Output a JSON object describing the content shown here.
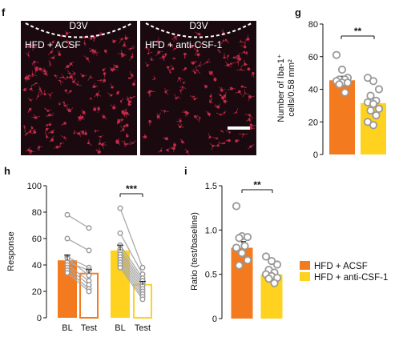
{
  "colors": {
    "acsf": "#f47a20",
    "anti_csf1": "#ffd21f",
    "dot_fill": "#ffffff",
    "dot_stroke": "#999999",
    "line_gray": "#aaaaaa",
    "axis": "#111111",
    "micro_bg": "#1a0a0f",
    "micro_cell": "#c42a4a"
  },
  "panel_f": {
    "letter": "f",
    "images": [
      {
        "label": "HFD + ACSF",
        "region": "D3V"
      },
      {
        "label": "HFD + anti-CSF-1",
        "region": "D3V"
      }
    ]
  },
  "chart_data": [
    {
      "panel": "g",
      "type": "bar",
      "categories": [
        "HFD + ACSF",
        "HFD + anti-CSF-1"
      ],
      "values": [
        45.5,
        31.5
      ],
      "errors": [
        2.5,
        3.0
      ],
      "points": [
        [
          61,
          52,
          47,
          46,
          46,
          45,
          44,
          44,
          43,
          38
        ],
        [
          47,
          45,
          40,
          36,
          33,
          32,
          31,
          28,
          27,
          24,
          20,
          18
        ]
      ],
      "ylabel_line1": "Number of Iba-1⁺",
      "ylabel_line2": "cells/0.58 mm²",
      "ylim": [
        0,
        80
      ],
      "yticks": [
        "0",
        "20",
        "40",
        "60",
        "80"
      ],
      "significance": "**"
    },
    {
      "panel": "h",
      "type": "bar",
      "categories": [
        "BL",
        "Test",
        "BL",
        "Test"
      ],
      "groups": [
        "HFD + ACSF",
        "HFD + anti-CSF-1"
      ],
      "values": [
        43.5,
        33.5,
        51,
        25
      ],
      "errors": [
        4,
        3,
        4,
        2.5
      ],
      "paired": [
        [
          [
            78,
            68
          ],
          [
            60,
            51
          ],
          [
            46,
            38
          ],
          [
            45,
            32
          ],
          [
            42,
            36
          ],
          [
            40,
            28
          ],
          [
            38,
            25
          ],
          [
            36,
            22
          ],
          [
            34,
            20
          ]
        ],
        [
          [
            83,
            38
          ],
          [
            64,
            33
          ],
          [
            55,
            30
          ],
          [
            52,
            28
          ],
          [
            50,
            26
          ],
          [
            48,
            24
          ],
          [
            46,
            22
          ],
          [
            44,
            20
          ],
          [
            42,
            18
          ],
          [
            40,
            16
          ],
          [
            38,
            14
          ]
        ]
      ],
      "ylabel": "Response",
      "ylim": [
        0,
        100
      ],
      "yticks": [
        "0",
        "20",
        "40",
        "60",
        "80",
        "100"
      ],
      "significance": "***"
    },
    {
      "panel": "i",
      "type": "bar",
      "categories": [
        "HFD + ACSF",
        "HFD + anti-CSF-1"
      ],
      "values": [
        0.8,
        0.5
      ],
      "errors": [
        0.07,
        0.04
      ],
      "points": [
        [
          1.27,
          0.93,
          0.92,
          0.91,
          0.82,
          0.8,
          0.74,
          0.66,
          0.6
        ],
        [
          0.7,
          0.65,
          0.61,
          0.55,
          0.52,
          0.5,
          0.48,
          0.46,
          0.45,
          0.4
        ]
      ],
      "ylabel": "Ratio (test/baseline)",
      "ylim": [
        0,
        1.5
      ],
      "yticks": [
        "0",
        "0.5",
        "1.0",
        "1.5"
      ],
      "significance": "**"
    }
  ],
  "legend": {
    "items": [
      {
        "label": "HFD + ACSF",
        "color": "#f47a20"
      },
      {
        "label": "HFD + anti-CSF-1",
        "color": "#ffd21f"
      }
    ]
  }
}
